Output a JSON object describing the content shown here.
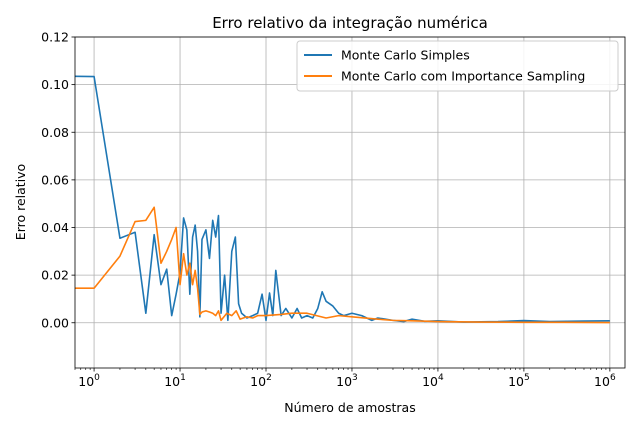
{
  "chart_data": {
    "type": "line",
    "title": "Erro relativo da integração numérica",
    "xlabel": "Número de amostras",
    "ylabel": "Erro relativo",
    "xscale": "log",
    "xlim": [
      0.6,
      1500000
    ],
    "ylim": [
      -0.019,
      0.12
    ],
    "grid": true,
    "legend_position": "top-right",
    "x_ticks": [
      {
        "base": "10",
        "exp": "0",
        "value": 1
      },
      {
        "base": "10",
        "exp": "1",
        "value": 10
      },
      {
        "base": "10",
        "exp": "2",
        "value": 100
      },
      {
        "base": "10",
        "exp": "3",
        "value": 1000
      },
      {
        "base": "10",
        "exp": "4",
        "value": 10000
      },
      {
        "base": "10",
        "exp": "5",
        "value": 100000
      },
      {
        "base": "10",
        "exp": "6",
        "value": 1000000
      }
    ],
    "y_ticks": [
      {
        "label": "0.00",
        "value": 0.0
      },
      {
        "label": "0.02",
        "value": 0.02
      },
      {
        "label": "0.04",
        "value": 0.04
      },
      {
        "label": "0.06",
        "value": 0.06
      },
      {
        "label": "0.08",
        "value": 0.08
      },
      {
        "label": "0.10",
        "value": 0.1
      },
      {
        "label": "0.12",
        "value": 0.12
      }
    ],
    "series": [
      {
        "name": "Monte Carlo Simples",
        "color": "#1f77b4",
        "x": [
          0.6,
          1,
          2,
          3,
          4,
          5,
          6,
          7,
          8,
          9,
          10,
          11,
          12,
          13,
          14,
          15,
          16,
          17,
          18,
          20,
          22,
          24,
          26,
          28,
          30,
          33,
          36,
          40,
          44,
          48,
          52,
          56,
          60,
          70,
          80,
          90,
          100,
          110,
          120,
          130,
          150,
          170,
          200,
          230,
          260,
          300,
          350,
          400,
          450,
          500,
          600,
          700,
          800,
          1000,
          1300,
          1700,
          2000,
          3000,
          4000,
          5000,
          7000,
          10000,
          20000,
          50000,
          100000,
          200000,
          500000,
          1000000
        ],
        "y": [
          0.1035,
          0.1034,
          0.0355,
          0.038,
          0.004,
          0.037,
          0.016,
          0.0225,
          0.003,
          0.012,
          0.021,
          0.044,
          0.039,
          0.012,
          0.036,
          0.041,
          0.03,
          0.0025,
          0.035,
          0.039,
          0.027,
          0.043,
          0.036,
          0.045,
          0.004,
          0.02,
          0.001,
          0.03,
          0.036,
          0.008,
          0.004,
          0.003,
          0.002,
          0.003,
          0.004,
          0.012,
          0.001,
          0.0125,
          0.003,
          0.022,
          0.003,
          0.006,
          0.002,
          0.006,
          0.002,
          0.003,
          0.002,
          0.006,
          0.013,
          0.009,
          0.007,
          0.004,
          0.003,
          0.004,
          0.003,
          0.001,
          0.002,
          0.001,
          0.0005,
          0.0015,
          0.0006,
          0.0008,
          0.0003,
          0.0005,
          0.0009,
          0.0005,
          0.0007,
          0.0008
        ]
      },
      {
        "name": "Monte Carlo com Importance Sampling",
        "color": "#ff7f0e",
        "x": [
          0.6,
          1,
          2,
          3,
          4,
          5,
          6,
          7,
          8,
          9,
          10,
          11,
          12,
          13,
          14,
          15,
          16,
          17,
          18,
          20,
          22,
          24,
          26,
          28,
          30,
          35,
          40,
          45,
          50,
          60,
          70,
          80,
          100,
          150,
          200,
          300,
          500,
          700,
          1000,
          2000,
          3000,
          5000,
          10000,
          30000,
          100000,
          300000,
          1000000
        ],
        "y": [
          0.0145,
          0.0145,
          0.028,
          0.0425,
          0.043,
          0.0485,
          0.025,
          0.03,
          0.035,
          0.04,
          0.016,
          0.029,
          0.02,
          0.025,
          0.016,
          0.022,
          0.0145,
          0.0035,
          0.0045,
          0.005,
          0.0045,
          0.004,
          0.003,
          0.005,
          0.001,
          0.004,
          0.003,
          0.005,
          0.0015,
          0.0025,
          0.002,
          0.003,
          0.003,
          0.0035,
          0.004,
          0.004,
          0.002,
          0.003,
          0.0025,
          0.0015,
          0.001,
          0.0008,
          0.0005,
          0.0003,
          0.0002,
          0.0002,
          0.0001
        ]
      }
    ]
  }
}
